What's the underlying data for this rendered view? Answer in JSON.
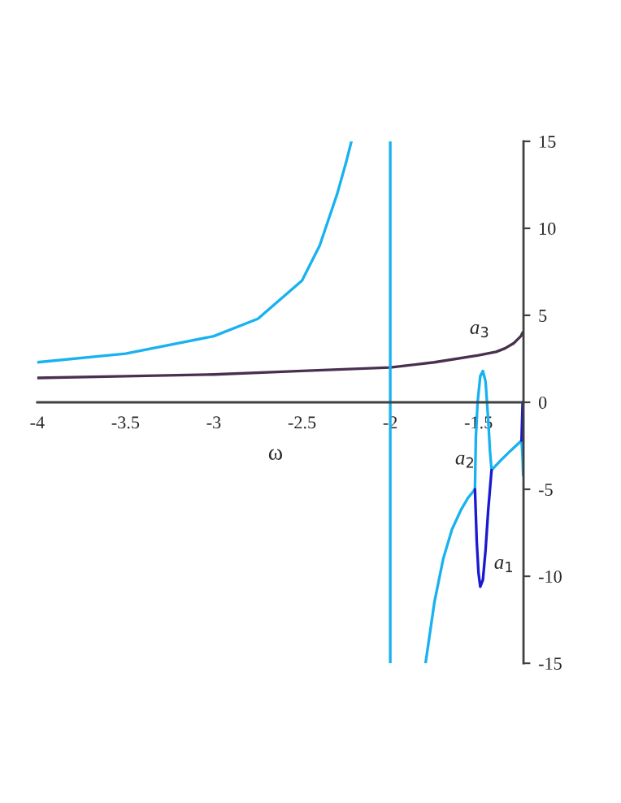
{
  "chart_data": {
    "type": "line",
    "xlabel": "ω",
    "xlim": [
      -4,
      -1.245
    ],
    "ylim": [
      -15,
      15
    ],
    "xticks": [
      -4,
      -3.5,
      -3,
      -2.5,
      -2,
      -1.5
    ],
    "yticks": [
      -15,
      -10,
      -5,
      0,
      5,
      10,
      15
    ],
    "grid": false,
    "legend": false,
    "marker": "none",
    "line_style": "solid",
    "series": [
      {
        "color": "#4a3050",
        "x": [
          -4,
          -3.5,
          -3,
          -2.5,
          -2,
          -1.75,
          -1.5,
          -1.4,
          -1.35,
          -1.3,
          -1.28,
          -1.26,
          -1.25
        ],
        "values": [
          1.4,
          1.5,
          1.6,
          1.8,
          2.0,
          2.3,
          2.7,
          2.9,
          3.1,
          3.4,
          3.6,
          3.8,
          4.0
        ]
      },
      {
        "color": "#18b2f0",
        "x": [
          -4,
          -3.5,
          -3,
          -2.75,
          -2.5,
          -2.4,
          -2.3,
          -2.25,
          -2.22
        ],
        "values": [
          2.3,
          2.8,
          3.8,
          4.8,
          7.0,
          9.0,
          12.0,
          13.8,
          15.0
        ]
      },
      {
        "color": "#18b2f0",
        "x": [
          -2,
          -2
        ],
        "values": [
          -15,
          15
        ]
      },
      {
        "color": "#18b2f0",
        "x": [
          -1.8,
          -1.75,
          -1.7,
          -1.65,
          -1.6,
          -1.56,
          -1.52,
          -1.515,
          -1.505,
          -1.49,
          -1.475,
          -1.46,
          -1.445,
          -1.435,
          -1.426,
          -1.38,
          -1.32,
          -1.256,
          -1.25,
          -1.247
        ],
        "values": [
          -15,
          -11.5,
          -9,
          -7.3,
          -6.2,
          -5.5,
          -5,
          -2,
          0,
          1.5,
          1.8,
          1.2,
          -1,
          -2.8,
          -3.9,
          -3.4,
          -2.8,
          -2.2,
          -3.2,
          -4.2
        ]
      },
      {
        "color": "#1a1ad0",
        "x": [
          -1.52,
          -1.51,
          -1.5,
          -1.49,
          -1.475,
          -1.46,
          -1.445,
          -1.426,
          null,
          -1.256,
          -1.25
        ],
        "values": [
          -5,
          -8,
          -9.8,
          -10.6,
          -10.2,
          -8.5,
          -6.2,
          -3.9,
          null,
          -2.2,
          0
        ]
      }
    ],
    "annotations": [
      "a$_{3}$",
      "a$_{2}$",
      "a$_{1}$"
    ]
  }
}
